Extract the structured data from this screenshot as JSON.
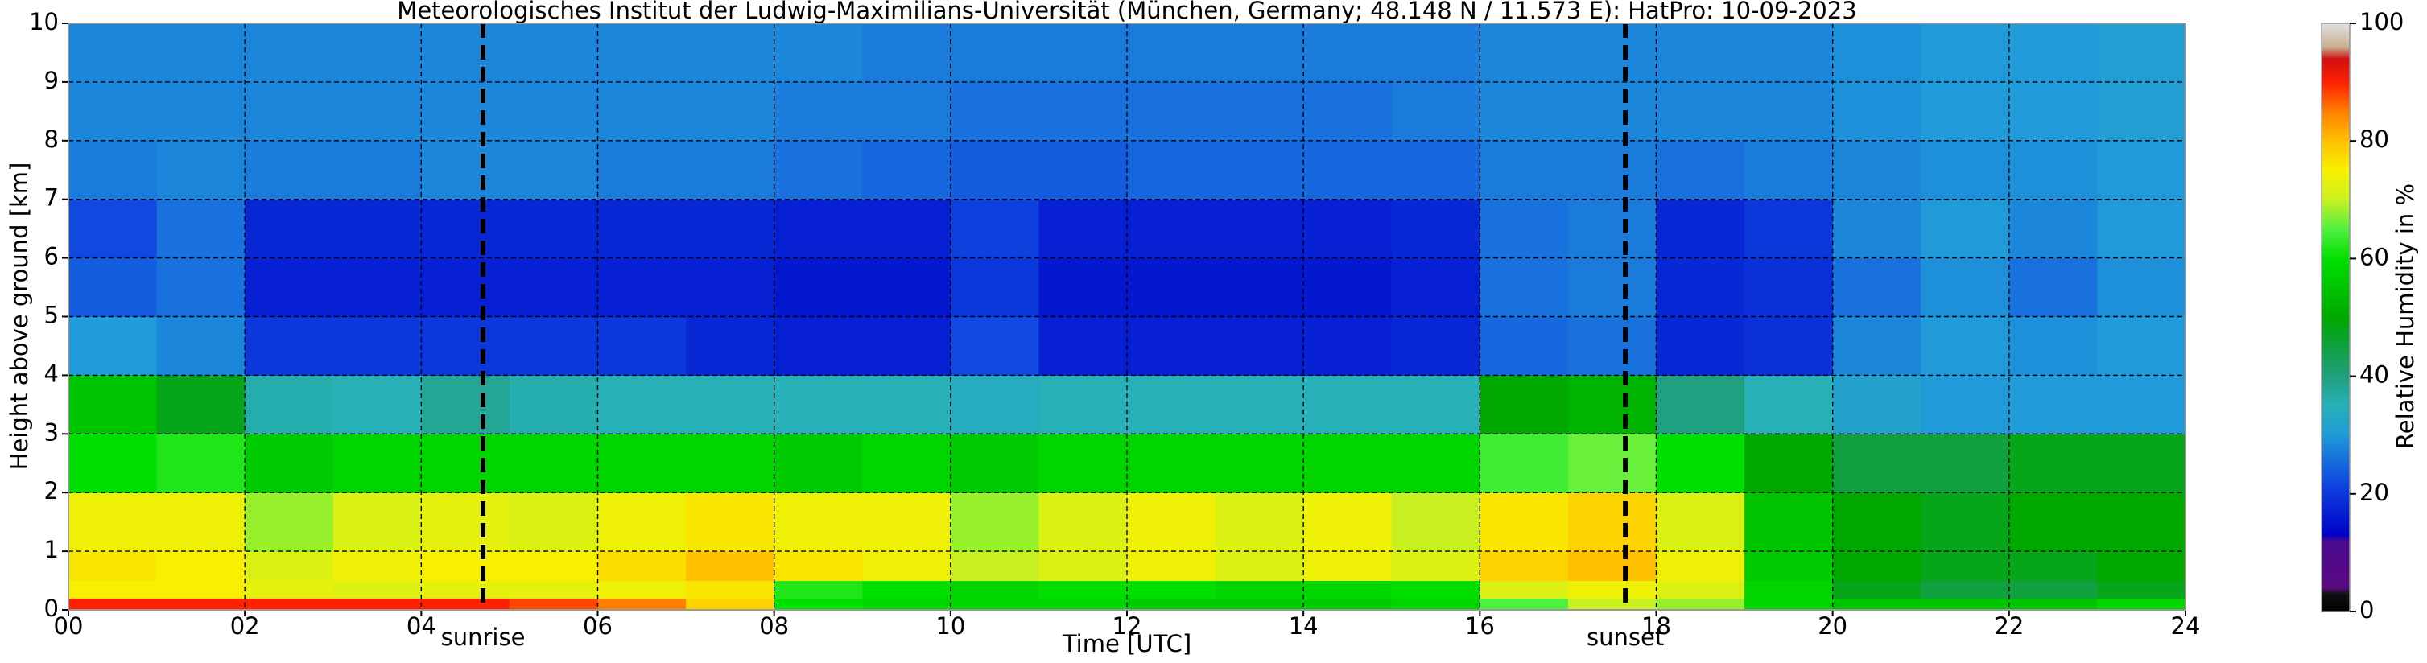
{
  "chart_data": {
    "type": "heatmap",
    "title": "Meteorologisches Institut der Ludwig-Maximilians-Universität (München, Germany; 48.148 N / 11.573 E):    HatPro: 10-09-2023",
    "xlabel": "Time [UTC]",
    "ylabel": "Height above ground [km]",
    "colorbar_label": "Relative Humidity in %",
    "x_edges": [
      0,
      1,
      2,
      3,
      4,
      5,
      6,
      7,
      8,
      9,
      10,
      11,
      12,
      13,
      14,
      15,
      16,
      17,
      18,
      19,
      20,
      21,
      22,
      23,
      24
    ],
    "y_edges": [
      0,
      0.2,
      0.5,
      1,
      2,
      3,
      4,
      5,
      6,
      7,
      8,
      9,
      10
    ],
    "values": [
      [
        90,
        90,
        90,
        90,
        90,
        88,
        85,
        78,
        60,
        58,
        58,
        58,
        56,
        56,
        56,
        58,
        65,
        70,
        68,
        58,
        55,
        55,
        55,
        58
      ],
      [
        75,
        75,
        73,
        72,
        73,
        73,
        74,
        76,
        62,
        60,
        58,
        60,
        60,
        58,
        58,
        60,
        72,
        74,
        72,
        58,
        48,
        45,
        45,
        48
      ],
      [
        76,
        75,
        72,
        74,
        75,
        75,
        77,
        80,
        76,
        74,
        70,
        72,
        74,
        72,
        74,
        72,
        78,
        80,
        74,
        56,
        50,
        48,
        48,
        50
      ],
      [
        74,
        74,
        68,
        72,
        73,
        72,
        74,
        76,
        74,
        74,
        68,
        72,
        74,
        72,
        74,
        70,
        76,
        78,
        72,
        55,
        50,
        48,
        50,
        50
      ],
      [
        60,
        62,
        56,
        58,
        58,
        58,
        58,
        58,
        56,
        58,
        56,
        58,
        58,
        58,
        58,
        58,
        64,
        66,
        60,
        50,
        45,
        45,
        48,
        48
      ],
      [
        55,
        48,
        36,
        35,
        38,
        36,
        35,
        35,
        35,
        35,
        34,
        35,
        35,
        35,
        35,
        35,
        50,
        52,
        40,
        35,
        32,
        30,
        30,
        30
      ],
      [
        30,
        28,
        20,
        20,
        20,
        20,
        20,
        18,
        17,
        17,
        22,
        17,
        17,
        17,
        17,
        18,
        25,
        26,
        18,
        19,
        28,
        30,
        29,
        30
      ],
      [
        24,
        26,
        17,
        17,
        17,
        17,
        17,
        17,
        16,
        16,
        20,
        16,
        16,
        16,
        16,
        17,
        26,
        27,
        18,
        19,
        26,
        29,
        26,
        29
      ],
      [
        22,
        26,
        18,
        18,
        18,
        18,
        18,
        18,
        17,
        17,
        21,
        17,
        17,
        17,
        17,
        18,
        26,
        27,
        18,
        20,
        28,
        30,
        28,
        30
      ],
      [
        27,
        28,
        27,
        27,
        28,
        28,
        27,
        27,
        26,
        25,
        24,
        24,
        25,
        25,
        25,
        25,
        27,
        27,
        26,
        27,
        28,
        29,
        29,
        30
      ],
      [
        28,
        28,
        28,
        28,
        28,
        28,
        28,
        28,
        27,
        27,
        26,
        26,
        26,
        26,
        26,
        27,
        28,
        28,
        28,
        28,
        29,
        30,
        30,
        31
      ],
      [
        28,
        28,
        28,
        28,
        28,
        28,
        28,
        28,
        28,
        27,
        27,
        27,
        27,
        27,
        27,
        27,
        28,
        28,
        28,
        28,
        29,
        30,
        30,
        31
      ]
    ],
    "xlim": [
      0,
      24
    ],
    "ylim": [
      0,
      10
    ],
    "xticks": [
      {
        "value": 0,
        "label": "00"
      },
      {
        "value": 2,
        "label": "02"
      },
      {
        "value": 4,
        "label": "04"
      },
      {
        "value": 6,
        "label": "06"
      },
      {
        "value": 8,
        "label": "08"
      },
      10,
      12,
      14,
      16,
      18,
      20,
      22,
      24
    ],
    "yticks": [
      0,
      1,
      2,
      3,
      4,
      5,
      6,
      7,
      8,
      9,
      10
    ],
    "clim": [
      0,
      100
    ],
    "cticks": [
      0,
      20,
      40,
      60,
      80,
      100
    ],
    "grid": true,
    "colormap": [
      {
        "value": 0,
        "color": "#000000"
      },
      {
        "value": 3,
        "color": "#101010"
      },
      {
        "value": 4,
        "color": "#5a0a80"
      },
      {
        "value": 12,
        "color": "#4a0a90"
      },
      {
        "value": 13,
        "color": "#0000c8"
      },
      {
        "value": 22,
        "color": "#1048e0"
      },
      {
        "value": 30,
        "color": "#209ad8"
      },
      {
        "value": 35,
        "color": "#28b0b8"
      },
      {
        "value": 40,
        "color": "#20a080"
      },
      {
        "value": 45,
        "color": "#10a040"
      },
      {
        "value": 50,
        "color": "#00a800"
      },
      {
        "value": 60,
        "color": "#00e000"
      },
      {
        "value": 65,
        "color": "#50f040"
      },
      {
        "value": 70,
        "color": "#c8f020"
      },
      {
        "value": 75,
        "color": "#f8f000"
      },
      {
        "value": 80,
        "color": "#ffc000"
      },
      {
        "value": 85,
        "color": "#ff8000"
      },
      {
        "value": 90,
        "color": "#ff2000"
      },
      {
        "value": 94,
        "color": "#d01010"
      },
      {
        "value": 96,
        "color": "#c8b090"
      },
      {
        "value": 100,
        "color": "#e0e0e0"
      }
    ],
    "events": [
      {
        "x": 4.7,
        "label": "sunrise"
      },
      {
        "x": 17.65,
        "label": "sunset"
      }
    ]
  }
}
